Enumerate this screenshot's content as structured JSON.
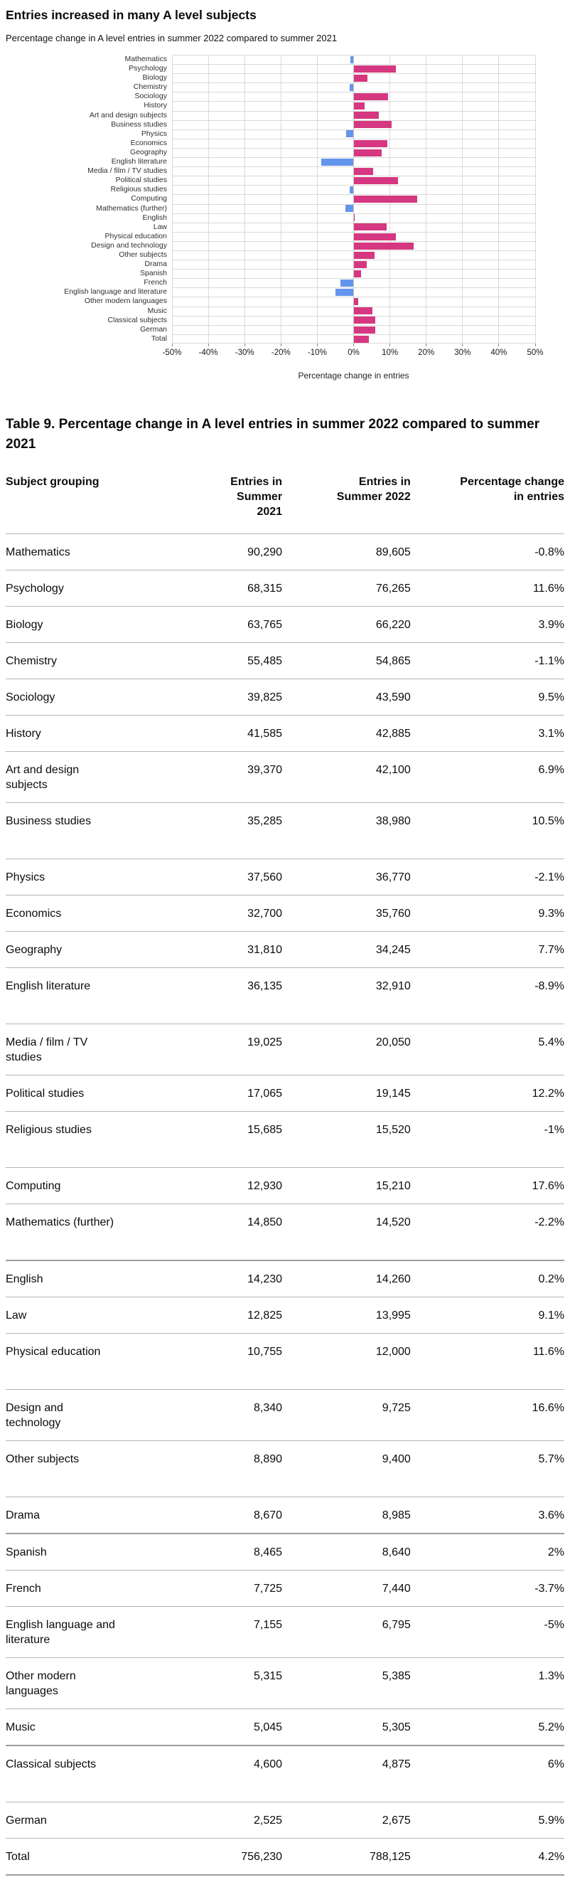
{
  "chart": {
    "title": "Entries increased in many A level subjects",
    "subtitle": "Percentage change in A level entries in summer 2022 compared to summer 2021",
    "colors": {
      "positive": "#d53880",
      "negative": "#6495ed",
      "gridline": "#d9d9d9"
    }
  },
  "chart_data": {
    "type": "bar",
    "orientation": "horizontal",
    "title": "Entries increased in many A level subjects",
    "subtitle": "Percentage change in A level entries in summer 2022 compared to summer 2021",
    "xlabel": "Percentage change in entries",
    "xlim": [
      -50,
      50
    ],
    "xticks": [
      -50,
      -40,
      -30,
      -20,
      -10,
      0,
      10,
      20,
      30,
      40,
      50
    ],
    "xtick_labels": [
      "-50%",
      "-40%",
      "-30%",
      "-20%",
      "-10%",
      "0%",
      "10%",
      "20%",
      "30%",
      "40%",
      "50%"
    ],
    "grid": true,
    "legend": false,
    "categories": [
      "Mathematics",
      "Psychology",
      "Biology",
      "Chemistry",
      "Sociology",
      "History",
      "Art and design subjects",
      "Business studies",
      "Physics",
      "Economics",
      "Geography",
      "English literature",
      "Media / film / TV studies",
      "Political studies",
      "Religious studies",
      "Computing",
      "Mathematics (further)",
      "English",
      "Law",
      "Physical education",
      "Design and technology",
      "Other subjects",
      "Drama",
      "Spanish",
      "French",
      "English language and literature",
      "Other modern languages",
      "Music",
      "Classical subjects",
      "German",
      "Total"
    ],
    "values": [
      -0.8,
      11.6,
      3.9,
      -1.1,
      9.5,
      3.1,
      6.9,
      10.5,
      -2.1,
      9.3,
      7.7,
      -8.9,
      5.4,
      12.2,
      -1,
      17.6,
      -2.2,
      0.2,
      9.1,
      11.6,
      16.6,
      5.7,
      3.6,
      2,
      -3.7,
      -5,
      1.3,
      5.2,
      6,
      5.9,
      4.2
    ]
  },
  "table": {
    "title": "Table 9. Percentage change in A level entries in summer 2022 compared to summer 2021",
    "columns": [
      "Subject grouping",
      "Entries in\nSummer 2021",
      "Entries in\nSummer 2022",
      "Percentage change\nin entries"
    ],
    "rows": [
      {
        "name": "Mathematics",
        "entries_2021": "90,290",
        "entries_2022": "89,605",
        "change": "-0.8%"
      },
      {
        "name": "Psychology",
        "entries_2021": "68,315",
        "entries_2022": "76,265",
        "change": "11.6%"
      },
      {
        "name": "Biology",
        "entries_2021": "63,765",
        "entries_2022": "66,220",
        "change": "3.9%"
      },
      {
        "name": "Chemistry",
        "entries_2021": "55,485",
        "entries_2022": "54,865",
        "change": "-1.1%"
      },
      {
        "name": "Sociology",
        "entries_2021": "39,825",
        "entries_2022": "43,590",
        "change": "9.5%"
      },
      {
        "name": "History",
        "entries_2021": "41,585",
        "entries_2022": "42,885",
        "change": "3.1%"
      },
      {
        "name": "Art and design\nsubjects",
        "entries_2021": "39,370",
        "entries_2022": "42,100",
        "change": "6.9%"
      },
      {
        "name": "Business studies",
        "entries_2021": "35,285",
        "entries_2022": "38,980",
        "change": "10.5%",
        "spacer": true
      },
      {
        "name": "Physics",
        "entries_2021": "37,560",
        "entries_2022": "36,770",
        "change": "-2.1%"
      },
      {
        "name": "Economics",
        "entries_2021": "32,700",
        "entries_2022": "35,760",
        "change": "9.3%"
      },
      {
        "name": "Geography",
        "entries_2021": "31,810",
        "entries_2022": "34,245",
        "change": "7.7%"
      },
      {
        "name": "English literature",
        "entries_2021": "36,135",
        "entries_2022": "32,910",
        "change": "-8.9%",
        "spacer": true
      },
      {
        "name": "Media / film / TV\nstudies",
        "entries_2021": "19,025",
        "entries_2022": "20,050",
        "change": "5.4%"
      },
      {
        "name": "Political studies",
        "entries_2021": "17,065",
        "entries_2022": "19,145",
        "change": "12.2%"
      },
      {
        "name": "Religious studies",
        "entries_2021": "15,685",
        "entries_2022": "15,520",
        "change": "-1%",
        "spacer": true
      },
      {
        "name": "Computing",
        "entries_2021": "12,930",
        "entries_2022": "15,210",
        "change": "17.6%"
      },
      {
        "name": "Mathematics (further)",
        "entries_2021": "14,850",
        "entries_2022": "14,520",
        "change": "-2.2%",
        "spacer": true
      },
      {
        "name": "English",
        "entries_2021": "14,230",
        "entries_2022": "14,260",
        "change": "0.2%",
        "thick_top": true
      },
      {
        "name": "Law",
        "entries_2021": "12,825",
        "entries_2022": "13,995",
        "change": "9.1%"
      },
      {
        "name": "Physical education",
        "entries_2021": "10,755",
        "entries_2022": "12,000",
        "change": "11.6%",
        "spacer": true
      },
      {
        "name": "Design and\ntechnology",
        "entries_2021": "8,340",
        "entries_2022": "9,725",
        "change": "16.6%"
      },
      {
        "name": "Other subjects",
        "entries_2021": "8,890",
        "entries_2022": "9,400",
        "change": "5.7%",
        "spacer": true
      },
      {
        "name": "Drama",
        "entries_2021": "8,670",
        "entries_2022": "8,985",
        "change": "3.6%"
      },
      {
        "name": "Spanish",
        "entries_2021": "8,465",
        "entries_2022": "8,640",
        "change": "2%",
        "thick_top": true
      },
      {
        "name": "French",
        "entries_2021": "7,725",
        "entries_2022": "7,440",
        "change": "-3.7%"
      },
      {
        "name": "English language and\nliterature",
        "entries_2021": "7,155",
        "entries_2022": "6,795",
        "change": "-5%"
      },
      {
        "name": "Other modern\nlanguages",
        "entries_2021": "5,315",
        "entries_2022": "5,385",
        "change": "1.3%"
      },
      {
        "name": "Music",
        "entries_2021": "5,045",
        "entries_2022": "5,305",
        "change": "5.2%"
      },
      {
        "name": "Classical subjects",
        "entries_2021": "4,600",
        "entries_2022": "4,875",
        "change": "6%",
        "spacer": true,
        "thick_top": true
      },
      {
        "name": "German",
        "entries_2021": "2,525",
        "entries_2022": "2,675",
        "change": "5.9%"
      },
      {
        "name": "Total",
        "entries_2021": "756,230",
        "entries_2022": "788,125",
        "change": "4.2%"
      }
    ]
  }
}
